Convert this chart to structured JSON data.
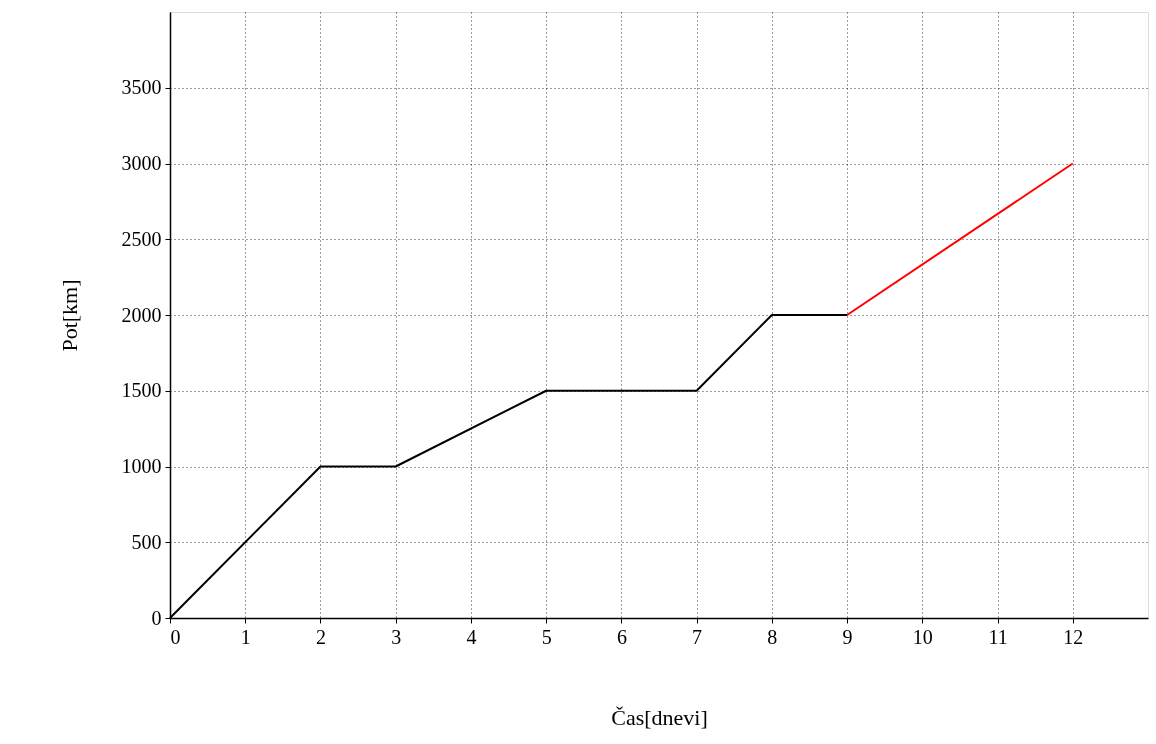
{
  "chart_data": {
    "type": "line",
    "xlabel": "Čas[dnevi]",
    "ylabel": "Pot[km]",
    "xlim": [
      0,
      13
    ],
    "ylim": [
      0,
      4000
    ],
    "xticks": [
      0,
      1,
      2,
      3,
      4,
      5,
      6,
      7,
      8,
      9,
      10,
      11,
      12
    ],
    "yticks": [
      0,
      500,
      1000,
      1500,
      2000,
      2500,
      3000,
      3500
    ],
    "grid": true,
    "line_style": "solid",
    "marker": "none",
    "series": [
      {
        "color": "#000000",
        "x": [
          0,
          2,
          3,
          5,
          7,
          8,
          9
        ],
        "values": [
          0,
          1000,
          1000,
          1500,
          1500,
          2000,
          2000
        ]
      },
      {
        "color": "#ff0000",
        "x": [
          9,
          12
        ],
        "values": [
          2000,
          3000
        ]
      }
    ]
  }
}
